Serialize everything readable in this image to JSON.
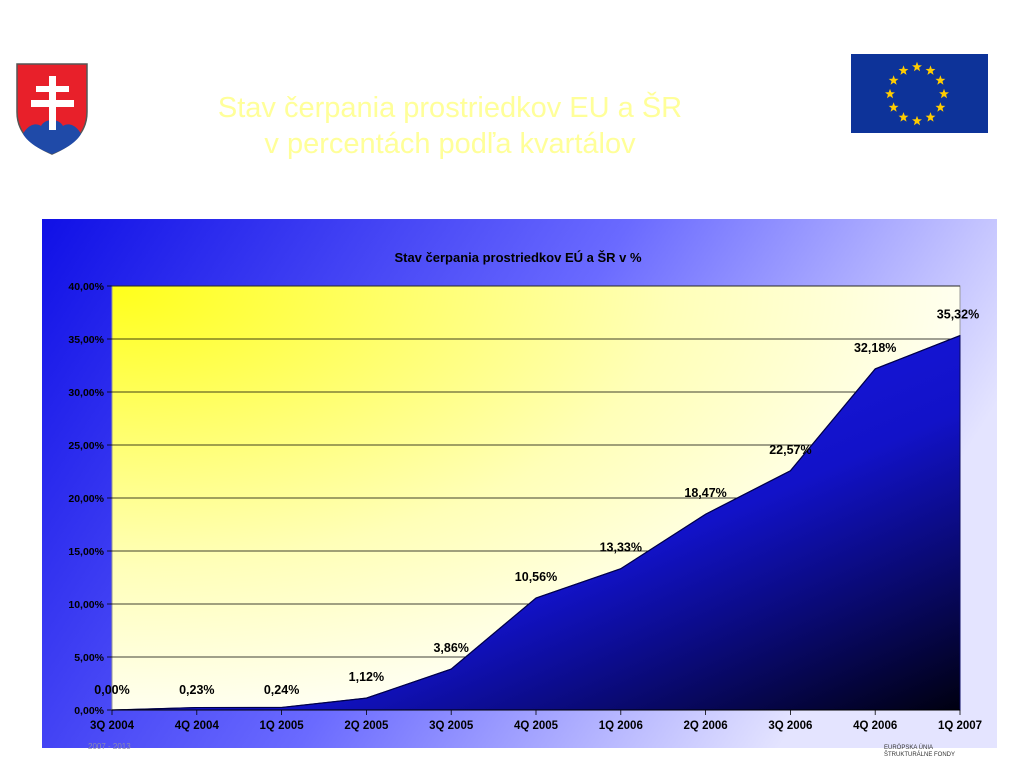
{
  "slide": {
    "title_line1": "Stav čerpania prostriedkov EU  a ŠR",
    "title_line2": "v percentách podľa kvartálov",
    "footer_left": "2007 - 2013",
    "footer_right_line1": "EURÓPSKA ÚNIA",
    "footer_right_line2": "ŠTRUKTURÁLNE FONDY"
  },
  "logos": {
    "left": "slovak-coat-of-arms-icon",
    "right": "eu-flag-icon"
  },
  "colors": {
    "title": "#ffff99",
    "area_fill": "#1a1aff",
    "panel_blue": "#1818e8",
    "plot_yellow": "#ffff33"
  },
  "chart_data": {
    "type": "area",
    "title": "Stav čerpania prostriedkov EÚ a ŠR  v %",
    "xlabel": "",
    "ylabel": "",
    "categories": [
      "3Q 2004",
      "4Q 2004",
      "1Q 2005",
      "2Q 2005",
      "3Q 2005",
      "4Q 2005",
      "1Q 2006",
      "2Q 2006",
      "3Q 2006",
      "4Q 2006",
      "1Q 2007"
    ],
    "values": [
      0.0,
      0.23,
      0.24,
      1.12,
      3.86,
      10.56,
      13.33,
      18.47,
      22.57,
      32.18,
      35.32
    ],
    "data_labels": [
      "0,00%",
      "0,23%",
      "0,24%",
      "1,12%",
      "3,86%",
      "10,56%",
      "13,33%",
      "18,47%",
      "22,57%",
      "32,18%",
      "35,32%"
    ],
    "yticks": [
      0,
      5,
      10,
      15,
      20,
      25,
      30,
      35,
      40
    ],
    "ytick_labels": [
      "0,00%",
      "5,00%",
      "10,00%",
      "15,00%",
      "20,00%",
      "25,00%",
      "30,00%",
      "35,00%",
      "40,00%"
    ],
    "ylim": [
      0,
      40
    ],
    "grid": true,
    "legend": "none"
  }
}
